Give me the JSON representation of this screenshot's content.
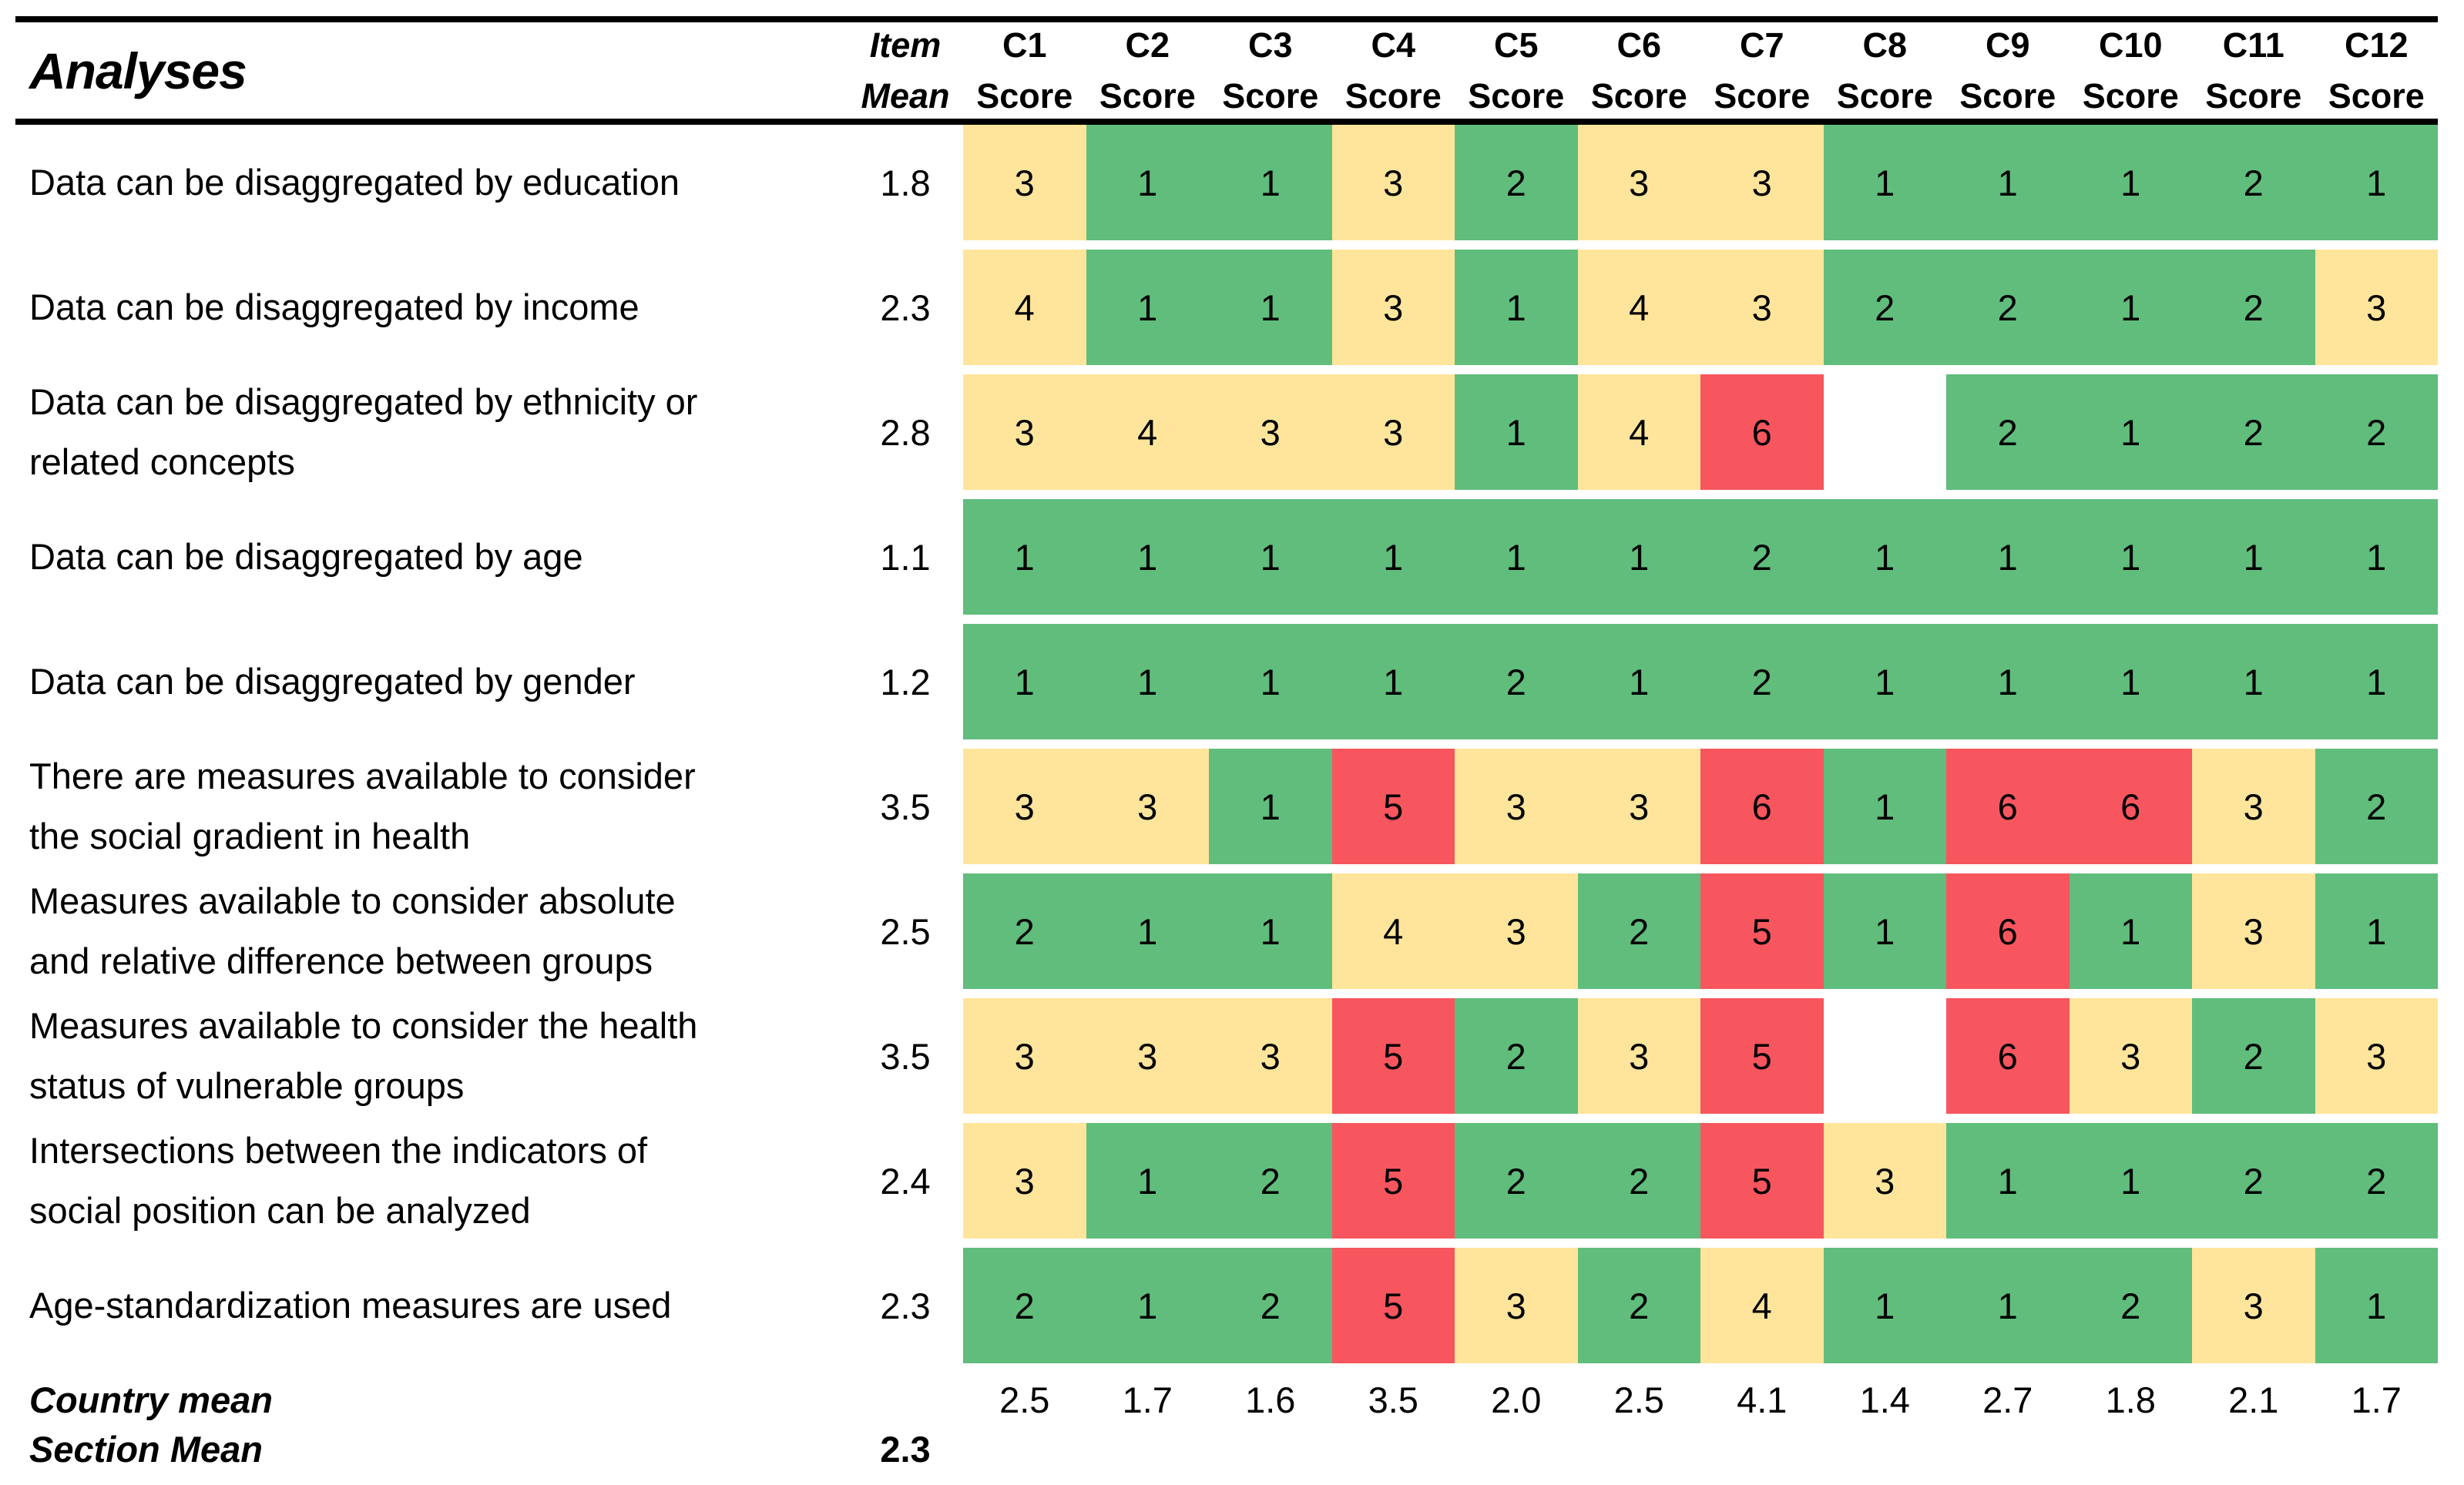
{
  "title": "Analyses",
  "header": {
    "item_mean_line1": "Item",
    "item_mean_line2": "Mean",
    "score_sublabel": "Score"
  },
  "footer": {
    "country_mean_label": "Country mean",
    "section_mean_label": "Section Mean",
    "section_mean_value": "2.3"
  },
  "colors": {
    "green": "#60BD7C",
    "yellow": "#FFE59B",
    "red": "#F7565E",
    "text": "#000000",
    "rule": "#000000"
  },
  "chart_data": {
    "type": "heatmap",
    "title": "Analyses",
    "columns": [
      "C1",
      "C2",
      "C3",
      "C4",
      "C5",
      "C6",
      "C7",
      "C8",
      "C9",
      "C10",
      "C11",
      "C12"
    ],
    "column_sublabel": "Score",
    "item_mean_header": "Item Mean",
    "color_scale": {
      "green_low": "#60BD7C",
      "yellow_mid": "#FFE59B",
      "red_high": "#F7565E"
    },
    "rows": [
      {
        "label": "Data can be disaggregated by education",
        "label_lines": [
          "Data can be disaggregated by education"
        ],
        "item_mean": "1.8",
        "scores": [
          "3",
          "1",
          "1",
          "3",
          "2",
          "3",
          "3",
          "1",
          "1",
          "1",
          "2",
          "1"
        ],
        "cell_colors": [
          "yellow",
          "green",
          "green",
          "yellow",
          "green",
          "yellow",
          "yellow",
          "green",
          "green",
          "green",
          "green",
          "green"
        ]
      },
      {
        "label": "Data can be disaggregated by income",
        "label_lines": [
          "Data can be disaggregated by income"
        ],
        "item_mean": "2.3",
        "scores": [
          "4",
          "1",
          "1",
          "3",
          "1",
          "4",
          "3",
          "2",
          "2",
          "1",
          "2",
          "3"
        ],
        "cell_colors": [
          "yellow",
          "green",
          "green",
          "yellow",
          "green",
          "yellow",
          "yellow",
          "green",
          "green",
          "green",
          "green",
          "yellow"
        ]
      },
      {
        "label": "Data can be disaggregated by ethnicity or related concepts",
        "label_lines": [
          "Data can be disaggregated by ethnicity or",
          "related concepts"
        ],
        "item_mean": "2.8",
        "scores": [
          "3",
          "4",
          "3",
          "3",
          "1",
          "4",
          "6",
          "",
          "2",
          "1",
          "2",
          "2"
        ],
        "cell_colors": [
          "yellow",
          "yellow",
          "yellow",
          "yellow",
          "green",
          "yellow",
          "red",
          "none",
          "green",
          "green",
          "green",
          "green"
        ]
      },
      {
        "label": "Data can be disaggregated by age",
        "label_lines": [
          "Data can be disaggregated by age"
        ],
        "item_mean": "1.1",
        "scores": [
          "1",
          "1",
          "1",
          "1",
          "1",
          "1",
          "2",
          "1",
          "1",
          "1",
          "1",
          "1"
        ],
        "cell_colors": [
          "green",
          "green",
          "green",
          "green",
          "green",
          "green",
          "green",
          "green",
          "green",
          "green",
          "green",
          "green"
        ]
      },
      {
        "label": "Data can be disaggregated by gender",
        "label_lines": [
          "Data can be disaggregated by gender"
        ],
        "item_mean": "1.2",
        "scores": [
          "1",
          "1",
          "1",
          "1",
          "2",
          "1",
          "2",
          "1",
          "1",
          "1",
          "1",
          "1"
        ],
        "cell_colors": [
          "green",
          "green",
          "green",
          "green",
          "green",
          "green",
          "green",
          "green",
          "green",
          "green",
          "green",
          "green"
        ]
      },
      {
        "label": "There are measures available to consider the social gradient in health",
        "label_lines": [
          "There are measures available to consider",
          "the social gradient in health"
        ],
        "item_mean": "3.5",
        "scores": [
          "3",
          "3",
          "1",
          "5",
          "3",
          "3",
          "6",
          "1",
          "6",
          "6",
          "3",
          "2"
        ],
        "cell_colors": [
          "yellow",
          "yellow",
          "green",
          "red",
          "yellow",
          "yellow",
          "red",
          "green",
          "red",
          "red",
          "yellow",
          "green"
        ]
      },
      {
        "label": "Measures available to consider absolute and relative difference between groups",
        "label_lines": [
          "Measures available to consider absolute",
          "and relative difference between groups"
        ],
        "item_mean": "2.5",
        "scores": [
          "2",
          "1",
          "1",
          "4",
          "3",
          "2",
          "5",
          "1",
          "6",
          "1",
          "3",
          "1"
        ],
        "cell_colors": [
          "green",
          "green",
          "green",
          "yellow",
          "yellow",
          "green",
          "red",
          "green",
          "red",
          "green",
          "yellow",
          "green"
        ]
      },
      {
        "label": "Measures available to consider the health status of vulnerable groups",
        "label_lines": [
          "Measures available to consider the health",
          "status of vulnerable groups"
        ],
        "item_mean": "3.5",
        "scores": [
          "3",
          "3",
          "3",
          "5",
          "2",
          "3",
          "5",
          "",
          "6",
          "3",
          "2",
          "3"
        ],
        "cell_colors": [
          "yellow",
          "yellow",
          "yellow",
          "red",
          "green",
          "yellow",
          "red",
          "none",
          "red",
          "yellow",
          "green",
          "yellow"
        ]
      },
      {
        "label": "Intersections between the indicators of social position can be analyzed",
        "label_lines": [
          "Intersections between the indicators of",
          "social position can be analyzed"
        ],
        "item_mean": "2.4",
        "scores": [
          "3",
          "1",
          "2",
          "5",
          "2",
          "2",
          "5",
          "3",
          "1",
          "1",
          "2",
          "2"
        ],
        "cell_colors": [
          "yellow",
          "green",
          "green",
          "red",
          "green",
          "green",
          "red",
          "yellow",
          "green",
          "green",
          "green",
          "green"
        ]
      },
      {
        "label": "Age-standardization measures are used",
        "label_lines": [
          "Age-standardization measures are used"
        ],
        "item_mean": "2.3",
        "scores": [
          "2",
          "1",
          "2",
          "5",
          "3",
          "2",
          "4",
          "1",
          "1",
          "2",
          "3",
          "1"
        ],
        "cell_colors": [
          "green",
          "green",
          "green",
          "red",
          "yellow",
          "green",
          "yellow",
          "green",
          "green",
          "green",
          "yellow",
          "green"
        ]
      }
    ],
    "country_mean": [
      "2.5",
      "1.7",
      "1.6",
      "3.5",
      "2.0",
      "2.5",
      "4.1",
      "1.4",
      "2.7",
      "1.8",
      "2.1",
      "1.7"
    ],
    "section_mean": "2.3"
  }
}
